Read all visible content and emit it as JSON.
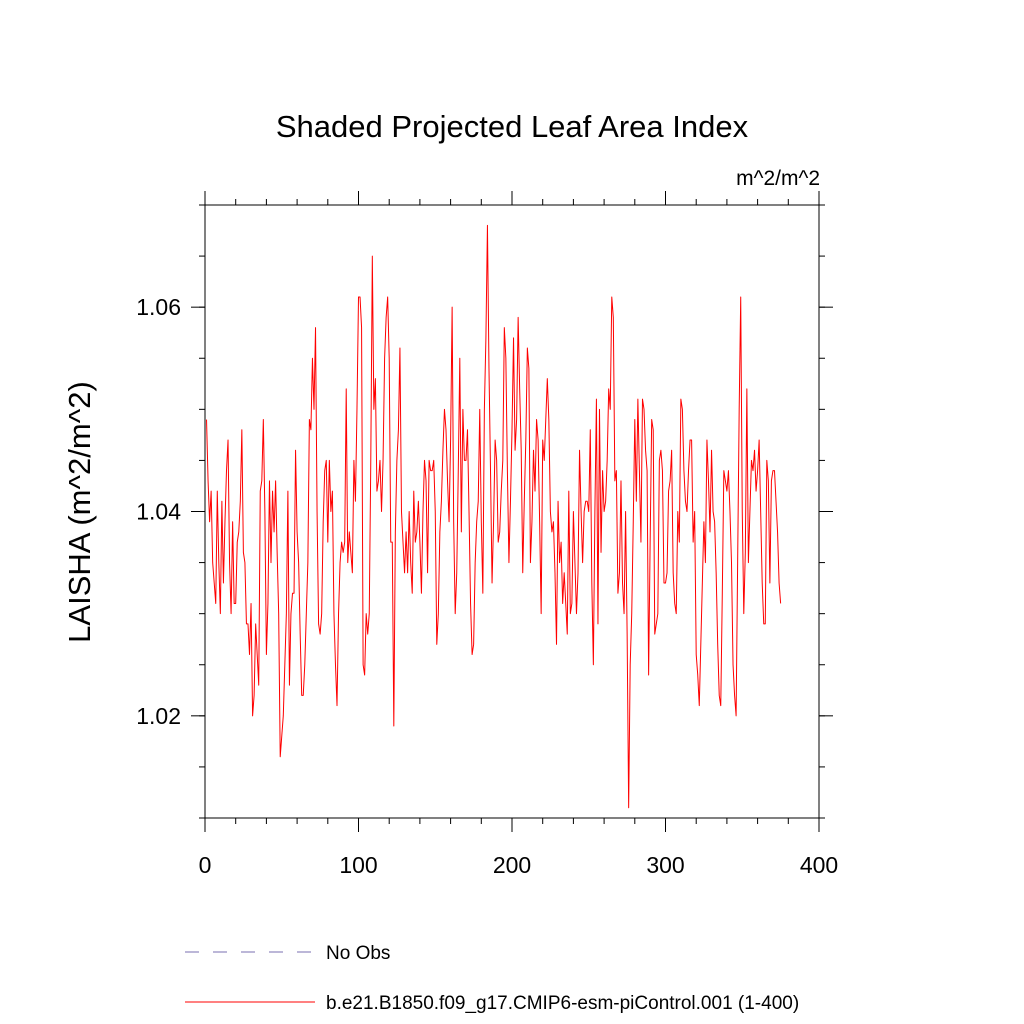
{
  "chart_data": {
    "type": "line",
    "title": "Shaded Projected Leaf Area Index",
    "units_label": "m^2/m^2",
    "ylabel": "LAISHA  (m^2/m^2)",
    "xlabel": "",
    "xlim": [
      0,
      400
    ],
    "ylim": [
      1.01,
      1.07
    ],
    "x_ticks": [
      0,
      100,
      200,
      300,
      400
    ],
    "x_tick_labels": [
      "0",
      "100",
      "200",
      "300",
      "400"
    ],
    "y_ticks": [
      1.02,
      1.04,
      1.06
    ],
    "y_tick_labels": [
      "1.02",
      "1.04",
      "1.06"
    ],
    "grid": false,
    "legend_position": "bottom",
    "colors": {
      "model": "#ff0000",
      "obs": "#7a6fb0"
    },
    "legend": [
      {
        "name": "No Obs",
        "style": "dashed"
      },
      {
        "name": "b.e21.B1850.f09_g17.CMIP6-esm-piControl.001 (1-400)",
        "style": "solid"
      }
    ],
    "series": [
      {
        "name": "b.e21.B1850.f09_g17.CMIP6-esm-piControl.001 (1-400)",
        "x_start": 1,
        "x_step": 1,
        "values": [
          1.049,
          1.043,
          1.039,
          1.042,
          1.035,
          1.033,
          1.031,
          1.042,
          1.035,
          1.03,
          1.041,
          1.033,
          1.039,
          1.044,
          1.047,
          1.035,
          1.03,
          1.039,
          1.031,
          1.031,
          1.037,
          1.038,
          1.041,
          1.048,
          1.036,
          1.035,
          1.029,
          1.029,
          1.026,
          1.031,
          1.02,
          1.022,
          1.029,
          1.026,
          1.023,
          1.042,
          1.043,
          1.049,
          1.04,
          1.026,
          1.031,
          1.043,
          1.035,
          1.042,
          1.038,
          1.043,
          1.036,
          1.03,
          1.016,
          1.018,
          1.02,
          1.025,
          1.03,
          1.042,
          1.023,
          1.03,
          1.032,
          1.032,
          1.046,
          1.038,
          1.035,
          1.028,
          1.022,
          1.022,
          1.025,
          1.03,
          1.035,
          1.049,
          1.048,
          1.055,
          1.05,
          1.058,
          1.04,
          1.029,
          1.028,
          1.03,
          1.039,
          1.044,
          1.045,
          1.037,
          1.045,
          1.04,
          1.042,
          1.03,
          1.025,
          1.021,
          1.03,
          1.035,
          1.037,
          1.036,
          1.037,
          1.052,
          1.035,
          1.038,
          1.036,
          1.034,
          1.045,
          1.041,
          1.05,
          1.061,
          1.061,
          1.058,
          1.025,
          1.024,
          1.03,
          1.028,
          1.03,
          1.045,
          1.065,
          1.05,
          1.053,
          1.042,
          1.043,
          1.045,
          1.04,
          1.045,
          1.055,
          1.059,
          1.061,
          1.055,
          1.037,
          1.037,
          1.019,
          1.038,
          1.045,
          1.048,
          1.056,
          1.04,
          1.037,
          1.034,
          1.038,
          1.034,
          1.04,
          1.035,
          1.032,
          1.042,
          1.037,
          1.038,
          1.041,
          1.037,
          1.032,
          1.04,
          1.045,
          1.043,
          1.034,
          1.045,
          1.044,
          1.044,
          1.045,
          1.04,
          1.027,
          1.03,
          1.038,
          1.041,
          1.046,
          1.05,
          1.048,
          1.043,
          1.039,
          1.047,
          1.06,
          1.039,
          1.03,
          1.034,
          1.044,
          1.055,
          1.038,
          1.05,
          1.045,
          1.045,
          1.048,
          1.04,
          1.031,
          1.026,
          1.027,
          1.035,
          1.039,
          1.041,
          1.05,
          1.039,
          1.032,
          1.05,
          1.057,
          1.068,
          1.054,
          1.044,
          1.033,
          1.039,
          1.047,
          1.045,
          1.037,
          1.038,
          1.042,
          1.045,
          1.058,
          1.055,
          1.044,
          1.035,
          1.041,
          1.048,
          1.057,
          1.046,
          1.049,
          1.059,
          1.052,
          1.046,
          1.034,
          1.041,
          1.047,
          1.056,
          1.054,
          1.035,
          1.039,
          1.046,
          1.042,
          1.049,
          1.047,
          1.039,
          1.03,
          1.047,
          1.045,
          1.049,
          1.053,
          1.049,
          1.04,
          1.038,
          1.039,
          1.034,
          1.027,
          1.041,
          1.035,
          1.037,
          1.031,
          1.034,
          1.031,
          1.028,
          1.042,
          1.03,
          1.031,
          1.04,
          1.035,
          1.03,
          1.034,
          1.046,
          1.04,
          1.035,
          1.04,
          1.041,
          1.041,
          1.04,
          1.048,
          1.033,
          1.025,
          1.04,
          1.051,
          1.029,
          1.05,
          1.036,
          1.044,
          1.04,
          1.041,
          1.045,
          1.052,
          1.05,
          1.061,
          1.059,
          1.043,
          1.044,
          1.032,
          1.034,
          1.043,
          1.033,
          1.03,
          1.04,
          1.028,
          1.011,
          1.025,
          1.03,
          1.039,
          1.049,
          1.041,
          1.051,
          1.044,
          1.037,
          1.051,
          1.05,
          1.046,
          1.044,
          1.024,
          1.037,
          1.049,
          1.048,
          1.028,
          1.029,
          1.03,
          1.045,
          1.046,
          1.044,
          1.033,
          1.033,
          1.034,
          1.042,
          1.043,
          1.046,
          1.034,
          1.031,
          1.03,
          1.04,
          1.037,
          1.051,
          1.05,
          1.044,
          1.041,
          1.04,
          1.044,
          1.047,
          1.047,
          1.037,
          1.04,
          1.026,
          1.024,
          1.021,
          1.027,
          1.033,
          1.039,
          1.035,
          1.047,
          1.043,
          1.038,
          1.046,
          1.04,
          1.039,
          1.034,
          1.027,
          1.022,
          1.021,
          1.032,
          1.044,
          1.043,
          1.042,
          1.044,
          1.04,
          1.035,
          1.025,
          1.022,
          1.02,
          1.035,
          1.05,
          1.061,
          1.04,
          1.03,
          1.036,
          1.052,
          1.035,
          1.04,
          1.045,
          1.044,
          1.046,
          1.042,
          1.044,
          1.047,
          1.04,
          1.033,
          1.029,
          1.029,
          1.045,
          1.043,
          1.033,
          1.043,
          1.044,
          1.044,
          1.041,
          1.038,
          1.033,
          1.031
        ]
      }
    ]
  }
}
